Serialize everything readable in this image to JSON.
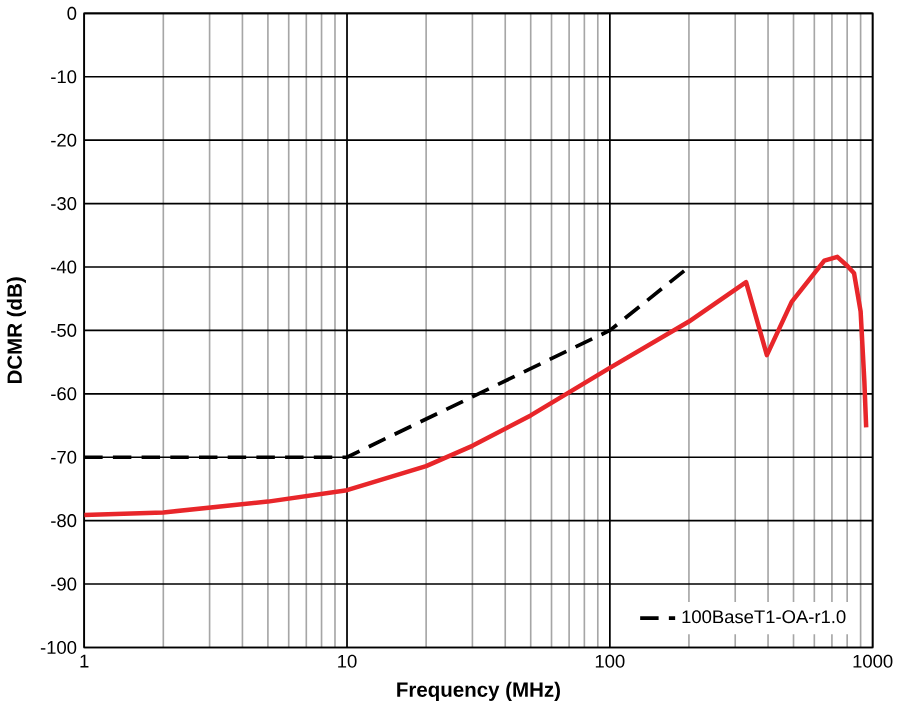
{
  "chart_data": {
    "type": "line",
    "xlabel": "Frequency (MHz)",
    "ylabel": "DCMR (dB)",
    "log": "x",
    "xlim": [
      1,
      1000
    ],
    "xticks": [
      1,
      10,
      100,
      1000
    ],
    "ylim": [
      -100,
      0
    ],
    "yticks": [
      0,
      -10,
      -20,
      -30,
      -40,
      -50,
      -60,
      -70,
      -80,
      -90,
      -100
    ],
    "grid": true,
    "legend": "bottom right",
    "series": [
      {
        "color": "#e8262a",
        "line_style": "solid",
        "x": [
          1,
          2,
          5,
          10,
          20,
          30,
          50,
          100,
          200,
          330,
          396,
          492,
          655,
          734,
          800,
          850,
          900,
          930,
          945
        ],
        "values": [
          -79.1,
          -78.7,
          -77.0,
          -75.2,
          -71.4,
          -68.2,
          -63.4,
          -55.9,
          -48.6,
          -42.4,
          -53.9,
          -45.5,
          -39.0,
          -38.4,
          -39.8,
          -41,
          -47,
          -58,
          -65.3
        ]
      },
      {
        "name": "100BaseT1-OA-r1.0",
        "color": "#000000",
        "line_style": "dashed",
        "x": [
          1,
          10,
          100,
          200
        ],
        "values": [
          -70,
          -70,
          -50,
          -40
        ]
      }
    ]
  }
}
